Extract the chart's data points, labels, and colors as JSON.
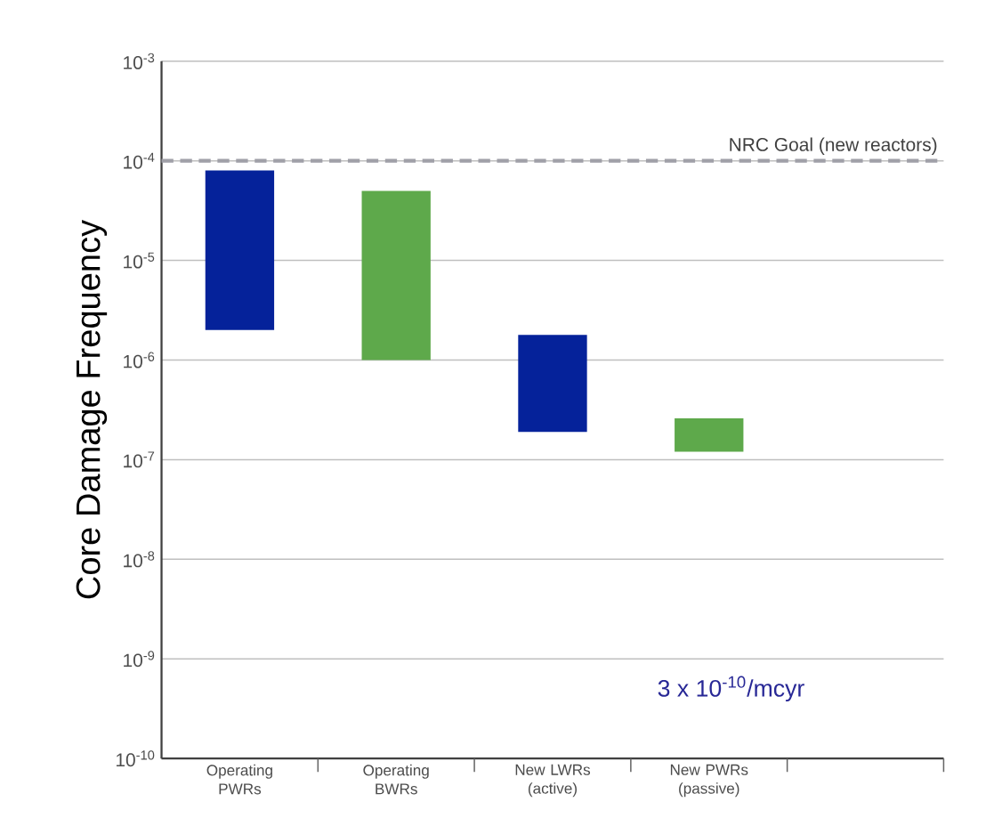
{
  "chart_data": {
    "type": "bar",
    "ylabel": "Core Damage Frequency",
    "categories": [
      "Operating PWRs",
      "Operating BWRs",
      "New LWRs (active)",
      "New PWRs (passive)",
      null
    ],
    "base": [
      2e-06,
      1e-06,
      1.9e-07,
      1.2e-07,
      null
    ],
    "values": [
      7.8e-05,
      4.9e-05,
      1.6e-06,
      1.4e-07,
      null
    ],
    "colors": [
      "#05229a",
      "#5ea94b",
      "#05229a",
      "#5ea94b",
      null
    ],
    "log": true,
    "grid": "y",
    "ylim": [
      1e-10,
      0.001
    ],
    "yticks": [
      {
        "value": 1e-10,
        "label": "10$^{-10}$"
      },
      {
        "value": 1e-09,
        "label": "10$^{-9}$"
      },
      {
        "value": 1e-08,
        "label": "10$^{-8}$"
      },
      {
        "value": 1e-07,
        "label": "10$^{-7}$"
      },
      {
        "value": 1e-06,
        "label": "10$^{-6}$"
      },
      {
        "value": 1e-05,
        "label": "10$^{-5}$"
      },
      {
        "value": 0.0001,
        "label": "10$^{-4}$"
      },
      {
        "value": 0.001,
        "label": "10$^{-3}$"
      }
    ],
    "ref_lines": [
      {
        "axis": "y",
        "value": 0.0001,
        "label": "NRC Goal (new reactors)",
        "color": "#a0a0a8",
        "line_style": "dashed"
      }
    ],
    "annotations": [
      "3 x 10$^{-10}$/mcyr"
    ]
  }
}
